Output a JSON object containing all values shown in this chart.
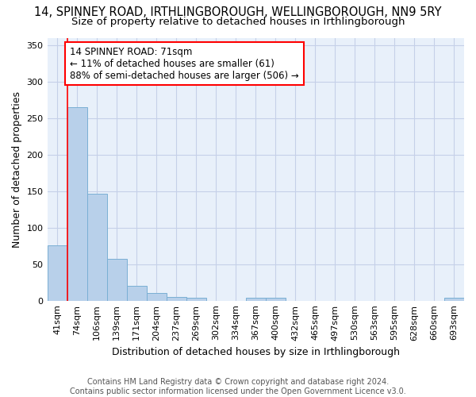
{
  "title": "14, SPINNEY ROAD, IRTHLINGBOROUGH, WELLINGBOROUGH, NN9 5RY",
  "subtitle": "Size of property relative to detached houses in Irthlingborough",
  "xlabel": "Distribution of detached houses by size in Irthlingborough",
  "ylabel": "Number of detached properties",
  "categories": [
    "41sqm",
    "74sqm",
    "106sqm",
    "139sqm",
    "171sqm",
    "204sqm",
    "237sqm",
    "269sqm",
    "302sqm",
    "334sqm",
    "367sqm",
    "400sqm",
    "432sqm",
    "465sqm",
    "497sqm",
    "530sqm",
    "563sqm",
    "595sqm",
    "628sqm",
    "660sqm",
    "693sqm"
  ],
  "values": [
    76,
    265,
    146,
    57,
    20,
    11,
    5,
    4,
    0,
    0,
    4,
    4,
    0,
    0,
    0,
    0,
    0,
    0,
    0,
    0,
    4
  ],
  "bar_color": "#b8d0ea",
  "bar_edge_color": "#7aafd4",
  "bg_color": "#e8f0fa",
  "grid_color": "#c5d0e8",
  "annotation_text": "14 SPINNEY ROAD: 71sqm\n← 11% of detached houses are smaller (61)\n88% of semi-detached houses are larger (506) →",
  "annotation_box_color": "white",
  "annotation_box_edge_color": "red",
  "redline_x": 0.5,
  "ylim": [
    0,
    360
  ],
  "yticks": [
    0,
    50,
    100,
    150,
    200,
    250,
    300,
    350
  ],
  "footer": "Contains HM Land Registry data © Crown copyright and database right 2024.\nContains public sector information licensed under the Open Government Licence v3.0.",
  "title_fontsize": 10.5,
  "subtitle_fontsize": 9.5,
  "label_fontsize": 9,
  "tick_fontsize": 8,
  "footer_fontsize": 7,
  "ann_fontsize": 8.5
}
